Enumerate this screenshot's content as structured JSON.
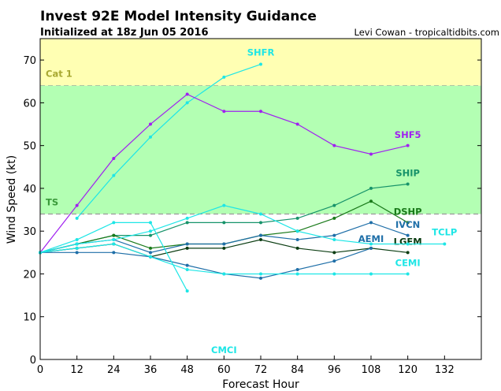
{
  "chart_data": {
    "type": "line",
    "title": "Invest 92E Model Intensity Guidance",
    "subtitle": "Initialized at 18z Jun 05 2016",
    "credit": "Levi Cowan - tropicaltidbits.com",
    "xlabel": "Forecast Hour",
    "ylabel": "Wind Speed (kt)",
    "xlim": [
      0,
      144
    ],
    "ylim": [
      0,
      75
    ],
    "xticks": [
      0,
      12,
      24,
      36,
      48,
      60,
      72,
      84,
      96,
      108,
      120,
      132
    ],
    "yticks": [
      0,
      10,
      20,
      30,
      40,
      50,
      60,
      70
    ],
    "bands": [
      {
        "label": "Cat 1",
        "from": 64,
        "to": 75,
        "color": "#ffffb3",
        "label_color": "#a8a832"
      },
      {
        "label": "TS",
        "from": 34,
        "to": 64,
        "color": "#b3ffb3",
        "label_color": "#3a9a3a"
      }
    ],
    "series": [
      {
        "name": "SHFR",
        "color": "#1ee6e6",
        "x": [
          12,
          24,
          36,
          48,
          60,
          72
        ],
        "y": [
          33,
          43,
          52,
          60,
          66,
          69
        ],
        "label_at": [
          72,
          71
        ]
      },
      {
        "name": "SHF5",
        "color": "#a020f0",
        "x": [
          0,
          12,
          24,
          36,
          48,
          60,
          72,
          84,
          96,
          108,
          120
        ],
        "y": [
          25,
          36,
          47,
          55,
          62,
          58,
          58,
          55,
          50,
          48,
          50
        ],
        "label_at": [
          120,
          51.8
        ]
      },
      {
        "name": "SHIP",
        "color": "#17936a",
        "x": [
          0,
          12,
          24,
          36,
          48,
          60,
          72,
          84,
          96,
          108,
          120
        ],
        "y": [
          25,
          27,
          29,
          29,
          32,
          32,
          32,
          33,
          36,
          40,
          41
        ],
        "label_at": [
          120,
          42.8
        ]
      },
      {
        "name": "DSHP",
        "color": "#1a7a1a",
        "x": [
          0,
          12,
          24,
          36,
          48,
          60,
          72,
          84,
          96,
          108,
          120
        ],
        "y": [
          25,
          27,
          29,
          26,
          27,
          27,
          29,
          30,
          33,
          37,
          32
        ],
        "label_at": [
          120,
          33.8
        ]
      },
      {
        "name": "IVCN",
        "color": "#1f6fa8",
        "x": [
          0,
          12,
          24,
          36,
          48,
          60,
          72,
          84,
          96,
          108,
          120
        ],
        "y": [
          25,
          27,
          28,
          25,
          27,
          27,
          29,
          28,
          29,
          32,
          29
        ],
        "label_at": [
          120,
          30.8
        ]
      },
      {
        "name": "LGEM",
        "color": "#0b3d12",
        "x": [
          0,
          12,
          24,
          36,
          48,
          60,
          72,
          84,
          96,
          108,
          120
        ],
        "y": [
          25,
          26,
          27,
          24,
          26,
          26,
          28,
          26,
          25,
          26,
          25
        ],
        "label_at": [
          120,
          26.8
        ]
      },
      {
        "name": "AEMI",
        "color": "#1f6fa8",
        "x": [
          0,
          12,
          24,
          36,
          48,
          60,
          72,
          84,
          96,
          108
        ],
        "y": [
          25,
          25,
          25,
          24,
          22,
          20,
          19,
          21,
          23,
          26
        ],
        "label_at": [
          108,
          27.5
        ]
      },
      {
        "name": "TCLP",
        "color": "#1ee6e6",
        "x": [
          0,
          12,
          24,
          36,
          48,
          60,
          72,
          84,
          96,
          108,
          120,
          132
        ],
        "y": [
          25,
          27,
          28,
          30,
          33,
          36,
          34,
          30,
          28,
          27,
          27,
          27
        ],
        "label_at": [
          132,
          29
        ]
      },
      {
        "name": "CEMI",
        "color": "#1ee6e6",
        "x": [
          0,
          12,
          24,
          36,
          48,
          60,
          72,
          84,
          96,
          108,
          120
        ],
        "y": [
          25,
          26,
          27,
          24,
          21,
          20,
          20,
          20,
          20,
          20,
          20
        ],
        "label_at": [
          120,
          21.8
        ]
      },
      {
        "name": "CMCI",
        "color": "#1ee6e6",
        "x": [
          0,
          12,
          24,
          36,
          48
        ],
        "y": [
          25,
          28,
          32,
          32,
          16
        ],
        "label_at": [
          60,
          1.5
        ]
      }
    ]
  }
}
